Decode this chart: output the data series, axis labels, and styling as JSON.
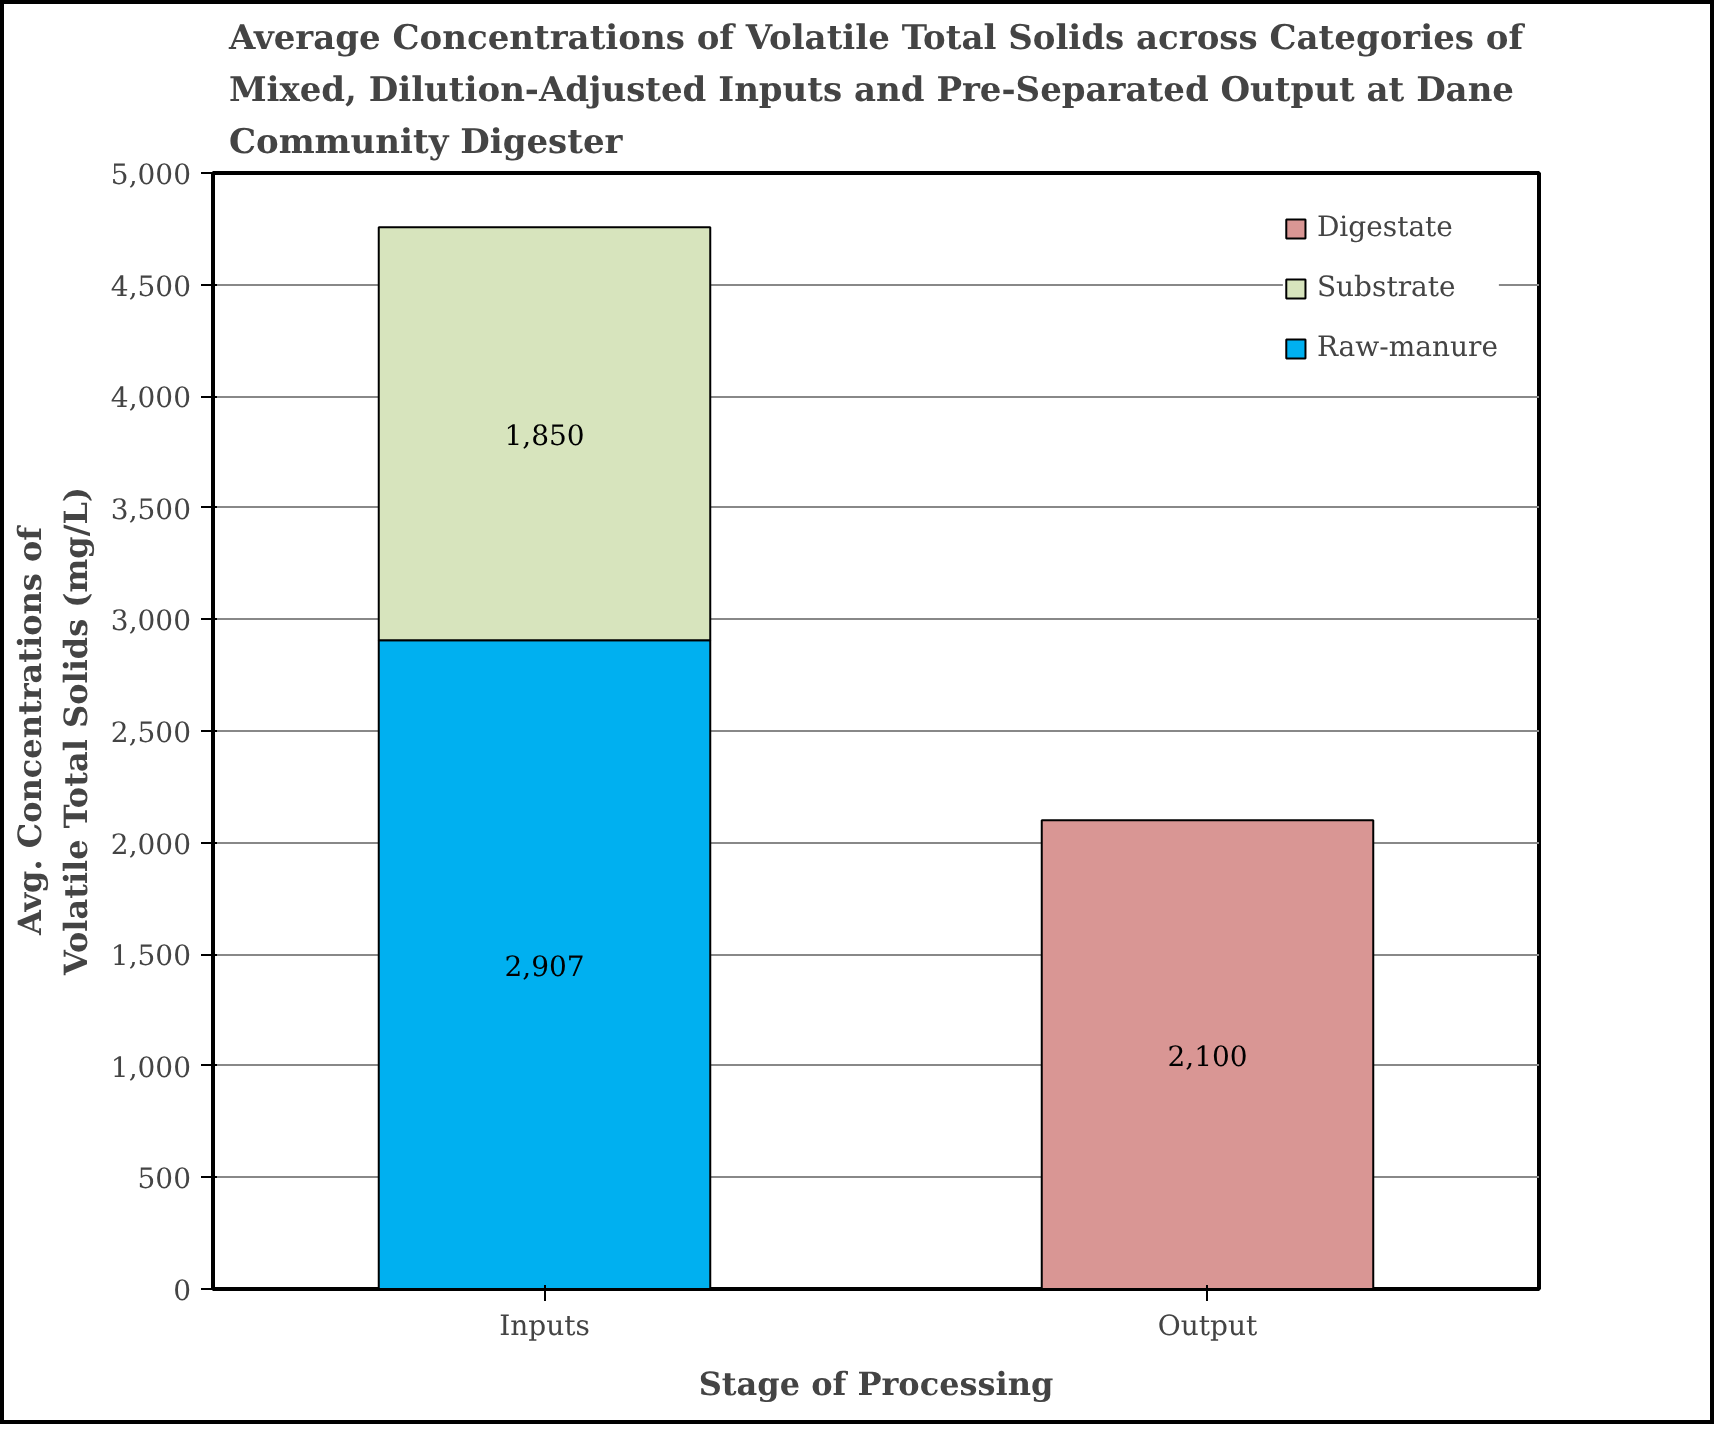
{
  "chart_data": {
    "type": "bar",
    "stacked": true,
    "title": "Average Concentrations of Volatile Total Solids across Categories of Mixed, Dilution-Adjusted Inputs and Pre-Separated Output at Dane Community Digester",
    "xlabel": "Stage of Processing",
    "ylabel": "Avg. Concentrations of Volatile Total Solids (mg/L)",
    "categories": [
      "Inputs",
      "Output"
    ],
    "series": [
      {
        "name": "Raw-manure",
        "color": "#00b0f0",
        "values": [
          2907,
          null
        ],
        "value_labels": [
          "2,907",
          null
        ]
      },
      {
        "name": "Substrate",
        "color": "#d7e4bd",
        "values": [
          1850,
          null
        ],
        "value_labels": [
          "1,850",
          null
        ]
      },
      {
        "name": "Digestate",
        "color": "#d99694",
        "values": [
          null,
          2100
        ],
        "value_labels": [
          null,
          "2,100"
        ]
      }
    ],
    "ylim": [
      0,
      5000
    ],
    "yticks": [
      {
        "value": 0,
        "label": "0"
      },
      {
        "value": 500,
        "label": "500"
      },
      {
        "value": 1000,
        "label": "1,000"
      },
      {
        "value": 1500,
        "label": "1,500"
      },
      {
        "value": 2000,
        "label": "2,000"
      },
      {
        "value": 2500,
        "label": "2,500"
      },
      {
        "value": 3000,
        "label": "3,000"
      },
      {
        "value": 3500,
        "label": "3,500"
      },
      {
        "value": 4000,
        "label": "4,000"
      },
      {
        "value": 4500,
        "label": "4,500"
      },
      {
        "value": 5000,
        "label": "5,000"
      }
    ],
    "grid": "y",
    "legend": "top right"
  }
}
